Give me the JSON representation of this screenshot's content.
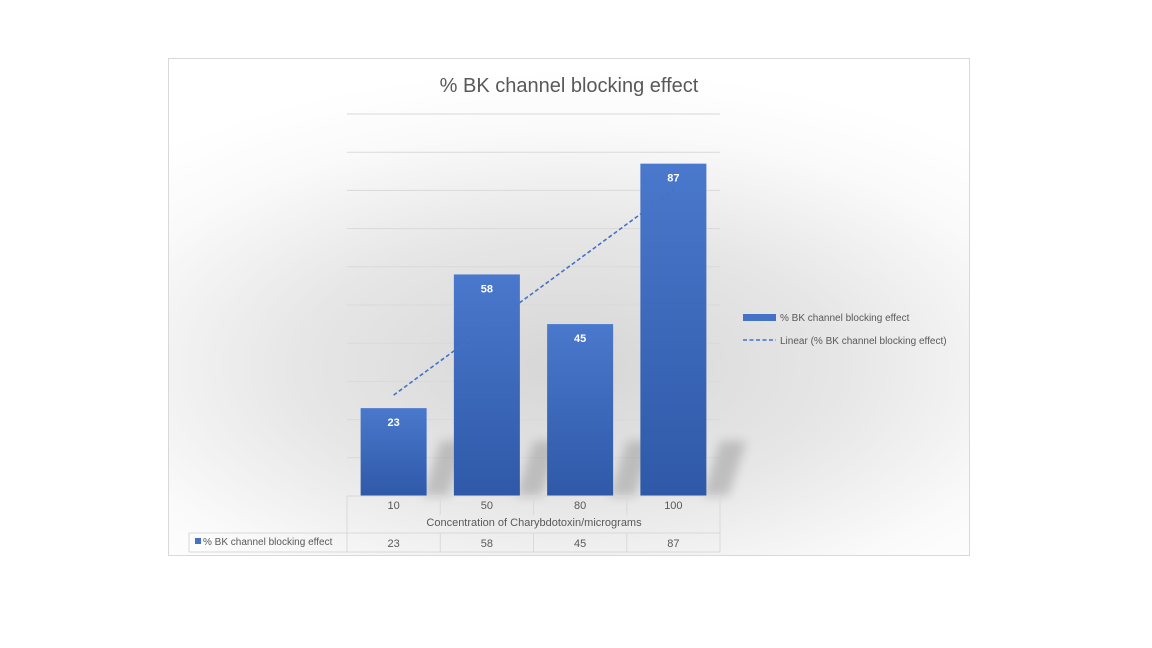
{
  "chart_data": {
    "type": "bar",
    "title": "% BK channel blocking effect",
    "categories": [
      "10",
      "50",
      "80",
      "100"
    ],
    "series": [
      {
        "name": "% BK channel blocking effect",
        "values": [
          23,
          58,
          45,
          87
        ],
        "color": "#4472c4"
      }
    ],
    "trendline": {
      "name": "Linear (% BK channel blocking effect)",
      "type": "linear",
      "style": "dashed",
      "color": "#4472c4"
    },
    "xlabel": "Concentration of Charybdotoxin/micrograms",
    "ylabel": "",
    "ylim": [
      0,
      100
    ],
    "grid": true,
    "show_value_labels": true,
    "legend_position": "right",
    "data_table": {
      "row_label": "% BK channel blocking effect",
      "values": [
        "23",
        "58",
        "45",
        "87"
      ]
    }
  }
}
